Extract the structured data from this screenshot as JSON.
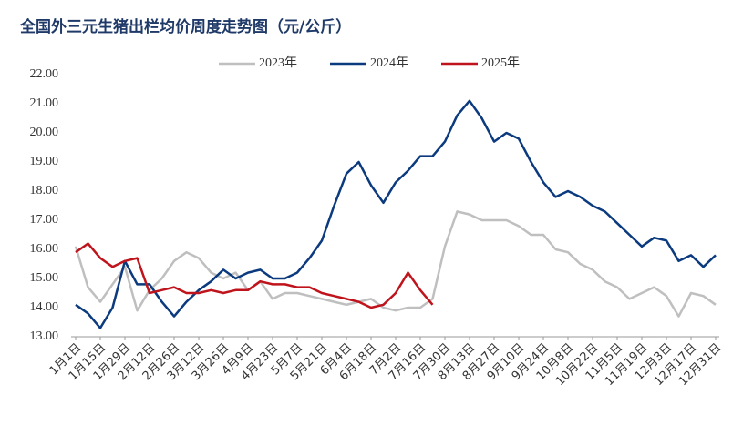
{
  "chart_data": {
    "type": "line",
    "title": "全国外三元生猪出栏均价周度走势图（元/公斤）",
    "categories": [
      "1月1日",
      null,
      "1月15日",
      null,
      "1月29日",
      null,
      "2月12日",
      null,
      "2月26日",
      null,
      "3月12日",
      null,
      "3月26日",
      null,
      "4月9日",
      null,
      "4月23日",
      null,
      "5月7日",
      null,
      "5月21日",
      null,
      "6月4日",
      null,
      "6月18日",
      null,
      "7月2日",
      null,
      "7月16日",
      null,
      "7月30日",
      null,
      "8月13日",
      null,
      "8月27日",
      null,
      "9月10日",
      null,
      "9月24日",
      null,
      "10月8日",
      null,
      "10月22日",
      null,
      "11月5日",
      null,
      "11月19日",
      null,
      "12月3日",
      null,
      "12月17日",
      null,
      "12月31日"
    ],
    "series": [
      {
        "name": "2023年",
        "color": "#bfbfbf",
        "values": [
          16.1,
          14.7,
          14.2,
          14.8,
          15.4,
          13.9,
          14.6,
          15.0,
          15.6,
          15.9,
          15.7,
          15.2,
          15.0,
          15.2,
          14.6,
          14.9,
          14.3,
          14.5,
          14.5,
          14.4,
          14.3,
          14.2,
          14.1,
          14.2,
          14.3,
          14.0,
          13.9,
          14.0,
          14.0,
          14.3,
          16.1,
          17.3,
          17.2,
          17.0,
          17.0,
          17.0,
          16.8,
          16.5,
          16.5,
          16.0,
          15.9,
          15.5,
          15.3,
          14.9,
          14.7,
          14.3,
          14.5,
          14.7,
          14.4,
          13.7,
          14.5,
          14.4,
          14.1
        ]
      },
      {
        "name": "2024年",
        "color": "#0b3a7e",
        "values": [
          14.1,
          13.8,
          13.3,
          14.0,
          15.6,
          14.8,
          14.8,
          14.2,
          13.7,
          14.2,
          14.6,
          14.9,
          15.3,
          15.0,
          15.2,
          15.3,
          15.0,
          15.0,
          15.2,
          15.7,
          16.3,
          17.5,
          18.6,
          19.0,
          18.2,
          17.6,
          18.3,
          18.7,
          19.2,
          19.2,
          19.7,
          20.6,
          21.1,
          20.5,
          19.7,
          20.0,
          19.8,
          19.0,
          18.3,
          17.8,
          18.0,
          17.8,
          17.5,
          17.3,
          16.9,
          16.5,
          16.1,
          16.4,
          16.3,
          15.6,
          15.8,
          15.4,
          15.8
        ]
      },
      {
        "name": "2025年",
        "color": "#c0141c",
        "values": [
          15.9,
          16.2,
          15.7,
          15.4,
          15.6,
          15.7,
          14.5,
          14.6,
          14.7,
          14.5,
          14.5,
          14.6,
          14.5,
          14.6,
          14.6,
          14.9,
          14.8,
          14.8,
          14.7,
          14.7,
          14.5,
          14.4,
          14.3,
          14.2,
          14.0,
          14.1,
          14.5,
          15.2,
          14.6,
          14.1,
          null,
          null,
          null,
          null,
          null,
          null,
          null,
          null,
          null,
          null,
          null,
          null,
          null,
          null,
          null,
          null,
          null,
          null,
          null,
          null,
          null,
          null,
          null
        ]
      }
    ],
    "ylim": [
      13,
      22
    ],
    "yticks": [
      {
        "value": 13,
        "label": "13.00"
      },
      {
        "value": 14,
        "label": "14.00"
      },
      {
        "value": 15,
        "label": "15.00"
      },
      {
        "value": 16,
        "label": "16.00"
      },
      {
        "value": 17,
        "label": "17.00"
      },
      {
        "value": 18,
        "label": "18.00"
      },
      {
        "value": 19,
        "label": "19.00"
      },
      {
        "value": 20,
        "label": "20.00"
      },
      {
        "value": 21,
        "label": "21.00"
      },
      {
        "value": 22,
        "label": "22.00"
      }
    ],
    "legend": "top"
  }
}
